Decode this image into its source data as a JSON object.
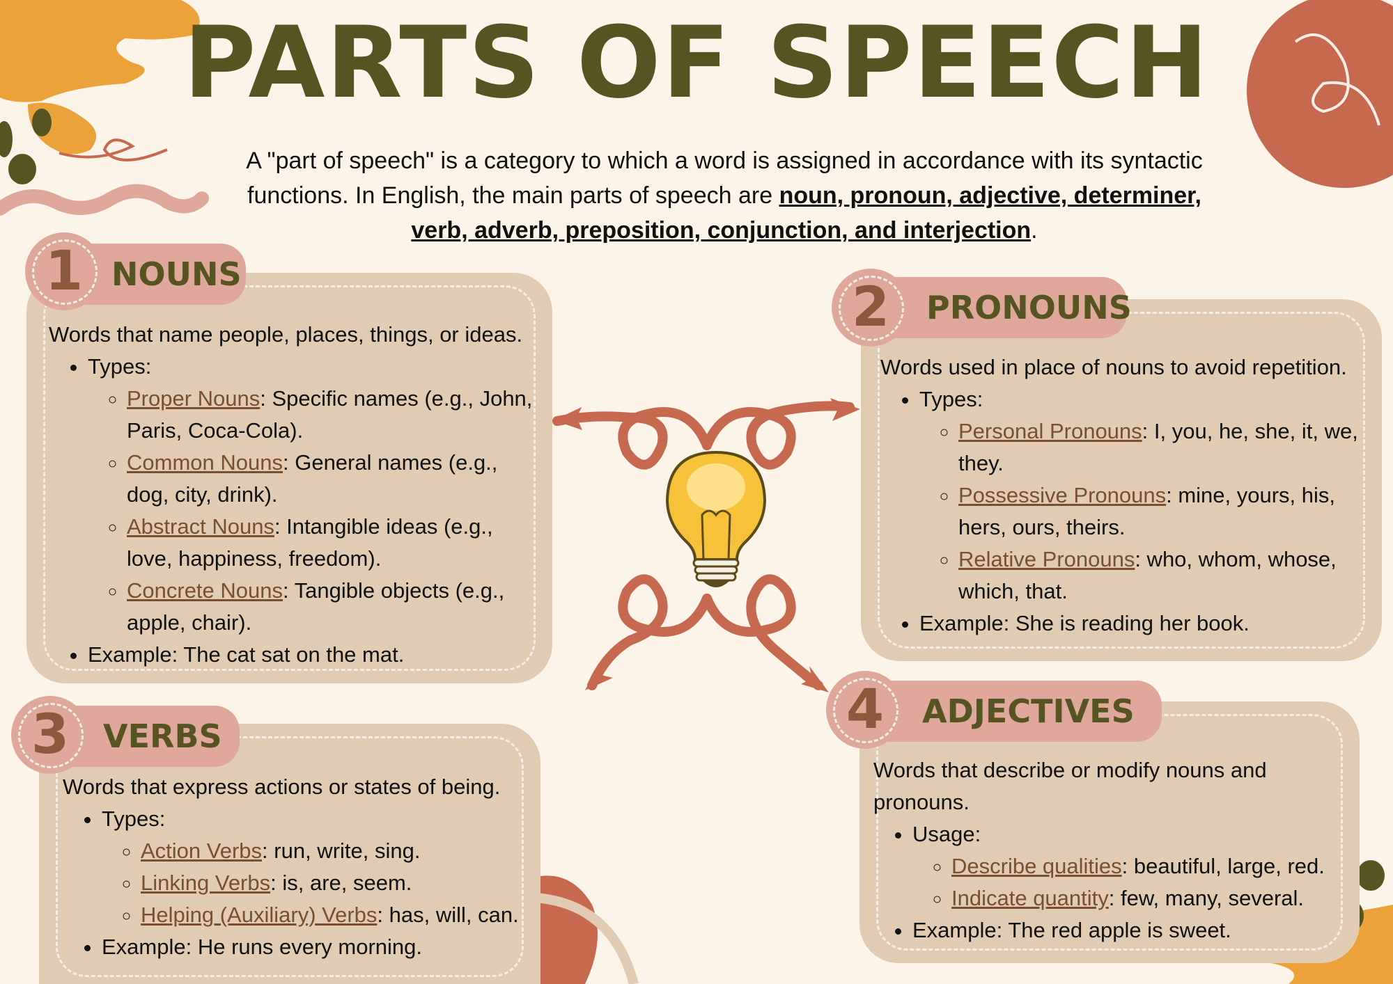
{
  "header": {
    "title": "PARTS OF SPEECH",
    "intro_text": "A \"part of speech\" is a category to which a word is assigned in accordance with its syntactic functions. In English, the main parts of speech are ",
    "intro_emphasis": "noun, pronoun, adjective, determiner, verb, adverb, preposition, conjunction, and interjection",
    "intro_end": "."
  },
  "colors": {
    "background": "#fcf3e9",
    "title": "#565421",
    "card": "#e1ccb3",
    "pill": "#dfa89a",
    "term": "#7a4f2d",
    "accent_orange": "#eba23a",
    "accent_terracotta": "#c7694e"
  },
  "icons": [
    "lightbulb-icon",
    "curved-arrow-icon"
  ],
  "sections": [
    {
      "number": "1",
      "title": "NOUNS",
      "definition": "Words that name people, places, things, or ideas.",
      "list_label": "Types:",
      "items": [
        {
          "term": "Proper Nouns",
          "desc": ": Specific names (e.g., John, Paris, Coca-Cola)."
        },
        {
          "term": "Common Nouns",
          "desc": ": General names (e.g., dog, city, drink)."
        },
        {
          "term": "Abstract Nouns",
          "desc": ": Intangible ideas (e.g., love, happiness, freedom)."
        },
        {
          "term": "Concrete Nouns",
          "desc": ": Tangible objects (e.g., apple, chair)."
        }
      ],
      "example": "Example: The cat sat on the mat."
    },
    {
      "number": "2",
      "title": "PRONOUNS",
      "definition": "Words used in place of nouns to avoid repetition.",
      "list_label": "Types:",
      "items": [
        {
          "term": "Personal Pronouns",
          "desc": ": I, you, he, she, it, we, they."
        },
        {
          "term": "Possessive Pronouns",
          "desc": ": mine, yours, his, hers, ours, theirs."
        },
        {
          "term": "Relative Pronouns",
          "desc": ": who, whom, whose, which, that."
        }
      ],
      "example": "Example: She is reading her book."
    },
    {
      "number": "3",
      "title": "VERBS",
      "definition": "Words that express actions or states of being.",
      "list_label": "Types:",
      "items": [
        {
          "term": "Action Verbs",
          "desc": ": run, write, sing."
        },
        {
          "term": "Linking Verbs",
          "desc": ": is, are, seem."
        },
        {
          "term": "Helping (Auxiliary) Verbs",
          "desc": ": has, will, can."
        }
      ],
      "example": "Example: He runs every morning."
    },
    {
      "number": "4",
      "title": "ADJECTIVES",
      "definition": "Words that describe or modify nouns and pronouns.",
      "list_label": "Usage:",
      "items": [
        {
          "term": "Describe qualities",
          "desc": ": beautiful, large, red."
        },
        {
          "term": "Indicate quantity",
          "desc": ": few, many, several."
        }
      ],
      "example": "Example: The red apple is sweet."
    }
  ]
}
